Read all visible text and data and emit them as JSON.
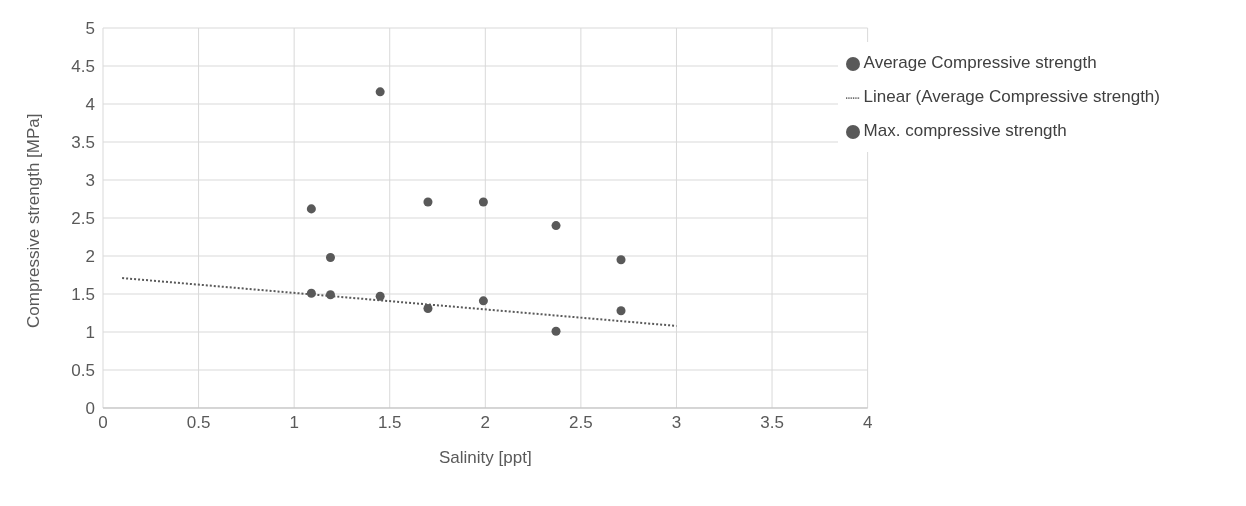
{
  "chart_data": {
    "type": "scatter",
    "xlabel": "Salinity [ppt]",
    "ylabel": "Compressive strength [MPa]",
    "xlim": [
      0,
      4
    ],
    "xticks": [
      0,
      0.5,
      1,
      1.5,
      2,
      2.5,
      3,
      3.5,
      4
    ],
    "ylim": [
      0,
      5
    ],
    "yticks": [
      0,
      0.5,
      1,
      1.5,
      2,
      2.5,
      3,
      3.5,
      4,
      4.5,
      5
    ],
    "grid": true,
    "legend": "top right",
    "marker": "circle",
    "series": [
      {
        "name": "Max. compressive strength",
        "color": "#595959",
        "x": [
          1.09,
          1.19,
          1.45,
          1.7,
          1.99,
          2.37,
          2.71
        ],
        "values": [
          2.62,
          1.98,
          4.16,
          2.71,
          2.71,
          2.4,
          1.95
        ]
      },
      {
        "name": "Average Compressive strength",
        "color": "#595959",
        "x": [
          1.09,
          1.19,
          1.45,
          1.7,
          1.99,
          2.37,
          2.71
        ],
        "values": [
          1.51,
          1.49,
          1.47,
          1.31,
          1.41,
          1.01,
          1.28
        ]
      },
      {
        "name": "Linear (Average Compressive strength)",
        "type": "line",
        "line_style": "dotted",
        "marker": "none",
        "color": "#595959",
        "x": [
          0.1,
          3
        ],
        "values": [
          1.71,
          1.08
        ]
      }
    ]
  }
}
